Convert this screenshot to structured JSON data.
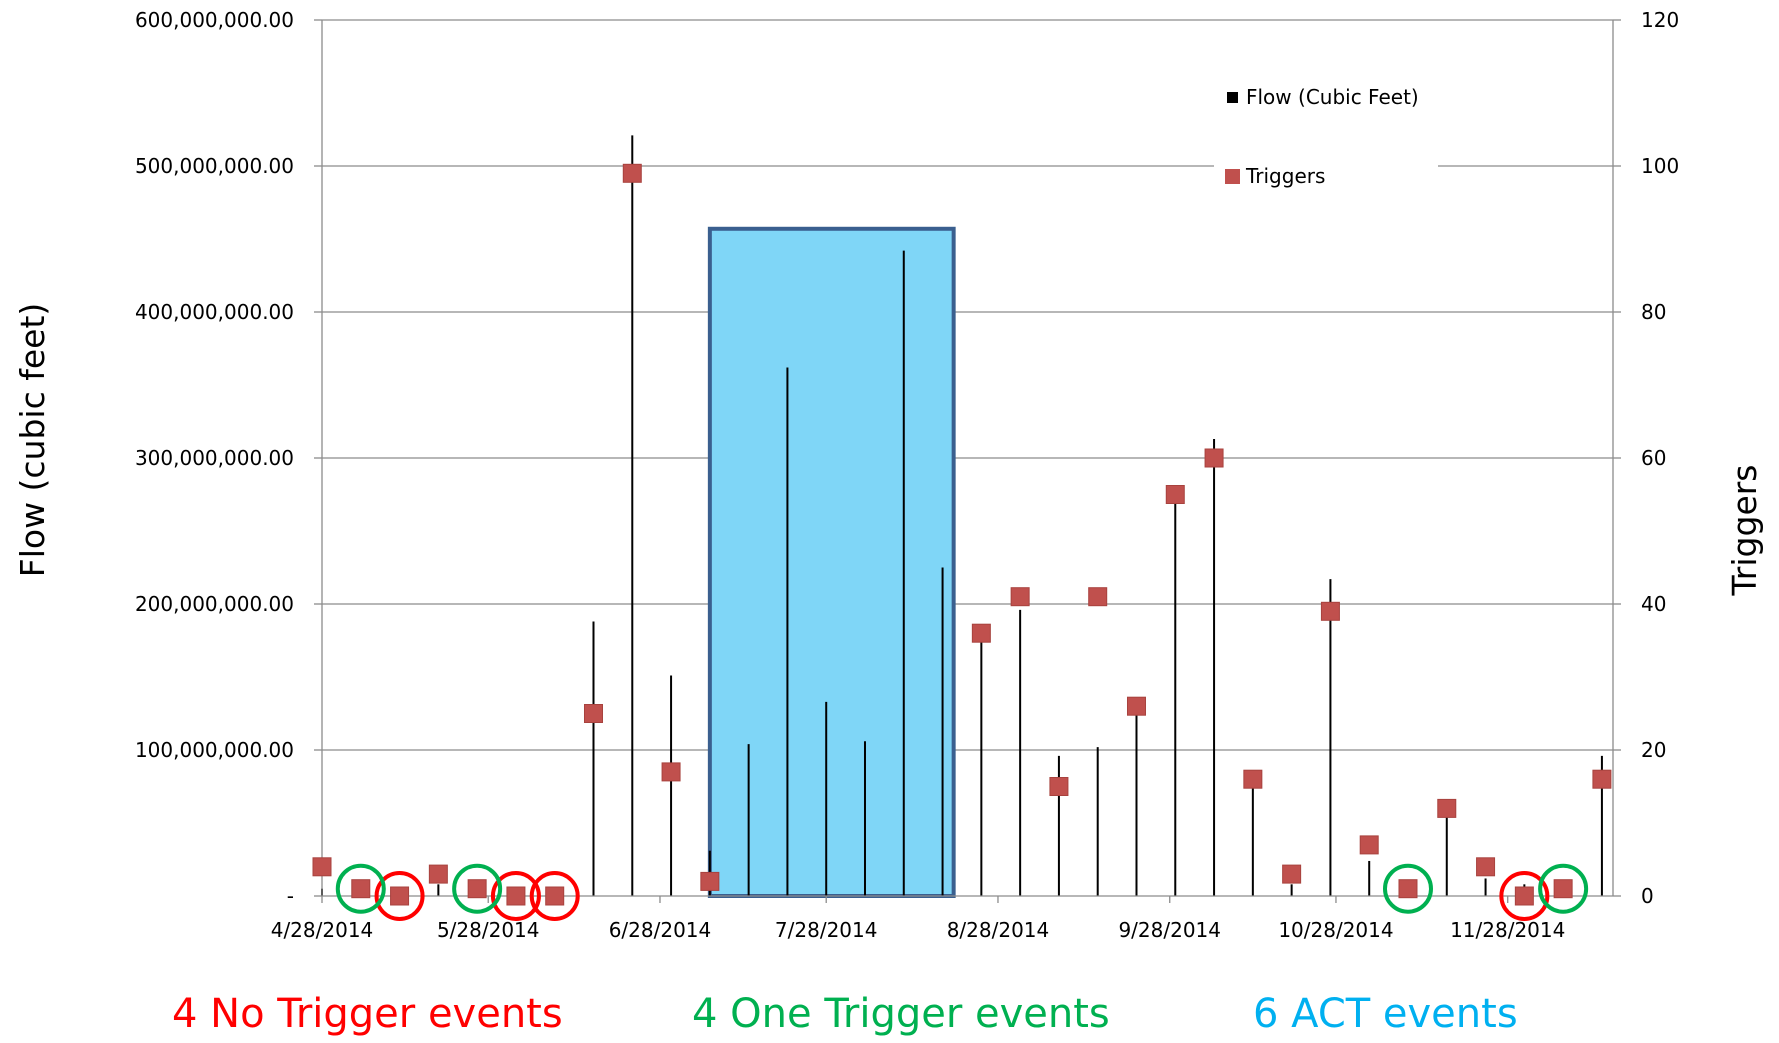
{
  "chart_data": {
    "type": "scatter",
    "x_dates": [
      "4/28/2014",
      "5/5/2014",
      "5/12/2014",
      "5/19/2014",
      "5/26/2014",
      "6/2/2014",
      "6/9/2014",
      "6/16/2014",
      "6/23/2014",
      "6/30/2014",
      "7/7/2014",
      "7/14/2014",
      "7/21/2014",
      "7/28/2014",
      "8/4/2014",
      "8/11/2014",
      "8/18/2014",
      "8/25/2014",
      "9/1/2014",
      "9/8/2014",
      "9/15/2014",
      "9/22/2014",
      "9/29/2014",
      "10/6/2014",
      "10/13/2014",
      "10/20/2014",
      "10/27/2014",
      "11/3/2014",
      "11/10/2014",
      "11/17/2014",
      "11/24/2014",
      "12/1/2014",
      "12/8/2014",
      "12/15/2014"
    ],
    "series": [
      {
        "name": "Flow (Cubic Feet)",
        "axis": "left",
        "style": "stick",
        "color": "#000000",
        "values": [
          5000000,
          3000000,
          4000000,
          8000000,
          6000000,
          2000000,
          2000000,
          188000000,
          521000000,
          151000000,
          31000000,
          104000000,
          362000000,
          133000000,
          106000000,
          442000000,
          225000000,
          175000000,
          196000000,
          96000000,
          102000000,
          125000000,
          270000000,
          313000000,
          75000000,
          8000000,
          217000000,
          24000000,
          5000000,
          58000000,
          12000000,
          8000000,
          5000000,
          96000000
        ]
      },
      {
        "name": "Triggers",
        "axis": "right",
        "style": "marker",
        "color": "#c0504d",
        "values": [
          4,
          1,
          0,
          3,
          1,
          0,
          0,
          25,
          99,
          17,
          2,
          null,
          null,
          null,
          null,
          null,
          null,
          36,
          41,
          15,
          41,
          26,
          55,
          60,
          16,
          3,
          39,
          7,
          1,
          12,
          4,
          0,
          1,
          16
        ]
      }
    ],
    "x_tick_labels": [
      "4/28/2014",
      "5/28/2014",
      "6/28/2014",
      "7/28/2014",
      "8/28/2014",
      "9/28/2014",
      "10/28/2014",
      "11/28/2014"
    ],
    "y_tick_labels": [
      "-",
      "100,000,000.00",
      "200,000,000.00",
      "300,000,000.00",
      "400,000,000.00",
      "500,000,000.00",
      "600,000,000.00"
    ],
    "y2_tick_labels": [
      "0",
      "20",
      "40",
      "60",
      "80",
      "100",
      "120"
    ],
    "ylim": [
      0,
      600000000
    ],
    "y2lim": [
      0,
      120
    ],
    "xlim": [
      "4/28/2014",
      "12/17/2014"
    ],
    "ylabel": "Flow (cubic feet)",
    "y2label": "Triggers",
    "grid": true,
    "legend_position": "top-right",
    "legend": [
      {
        "label": "Flow (Cubic Feet)",
        "symbol": "square",
        "color": "#000000"
      },
      {
        "label": "Triggers",
        "symbol": "square",
        "color": "#c0504d"
      }
    ],
    "act_period": {
      "start": "7/7/2014",
      "end": "8/20/2014",
      "height_value": 457000000,
      "fill": "#7fd6f7",
      "stroke": "#3a5f8f"
    },
    "no_trigger_circles": [
      "5/12/2014",
      "6/2/2014",
      "6/9/2014",
      "12/1/2014"
    ],
    "one_trigger_circles": [
      "5/5/2014",
      "5/26/2014",
      "11/10/2014",
      "12/8/2014"
    ]
  },
  "summary": {
    "no_trigger_text": "4 No Trigger events",
    "no_trigger_color": "#ff0000",
    "one_trigger_text": "4 One Trigger events",
    "one_trigger_color": "#00b050",
    "act_text": "6 ACT events",
    "act_color": "#00b0f0"
  }
}
